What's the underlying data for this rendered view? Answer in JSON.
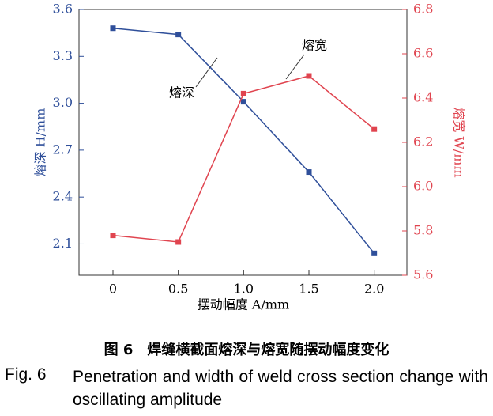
{
  "chart_data": {
    "type": "line",
    "x": [
      0,
      0.5,
      1,
      1.5,
      2
    ],
    "xlim": [
      -0.26,
      2.25
    ],
    "xticks": [
      0,
      0.5,
      {
        "value": 1,
        "label": "1.0"
      },
      1.5,
      {
        "value": 2,
        "label": "2.0"
      }
    ],
    "ylim": [
      1.9,
      3.6
    ],
    "yticks": [
      {
        "value": 2.1,
        "label": "2.1"
      },
      2.4,
      2.7,
      {
        "value": 3,
        "label": "3.0"
      },
      3.3,
      3.6
    ],
    "y2lim": [
      5.6,
      6.8
    ],
    "y2ticks": [
      5.6,
      5.8,
      {
        "value": 6,
        "label": "6.0"
      },
      6.2,
      6.4,
      6.6,
      6.8
    ],
    "x_label": "摆动幅度 A/mm",
    "y_label": "熔深 H/mm",
    "y2_label": "熔宽 W/mm",
    "series": [
      {
        "name": "熔深",
        "color": "#2f4f9a",
        "values": [
          3.48,
          3.44,
          3.01,
          2.56,
          2.04
        ]
      },
      {
        "name": "熔宽",
        "color": "#e0444f",
        "axis": "y2",
        "values": [
          5.78,
          5.75,
          6.42,
          6.5,
          6.26
        ]
      }
    ],
    "caption_cn": "图 6　焊缝横截面熔深与熔宽随摆动幅度变化",
    "caption_label": "Fig. 6",
    "caption_en": "Penetration and width of weld cross section change with oscillating amplitude"
  }
}
